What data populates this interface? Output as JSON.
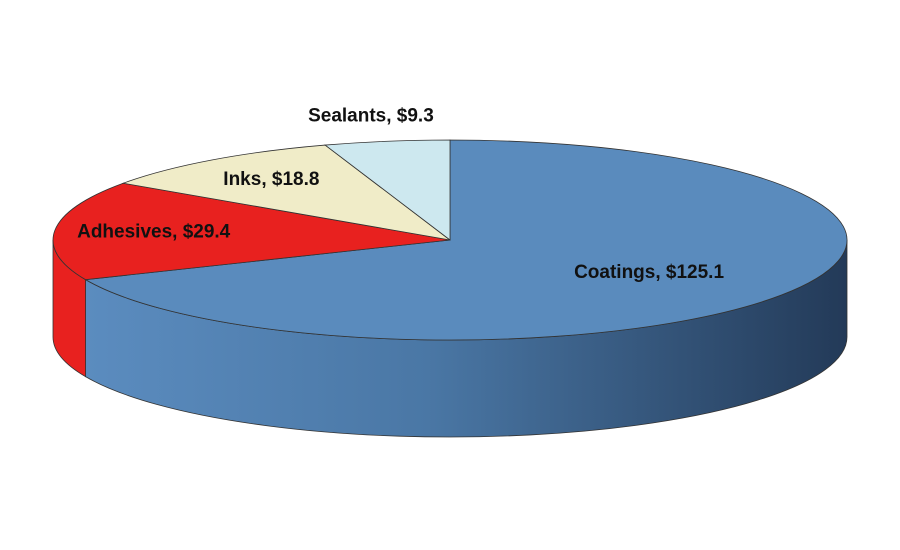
{
  "chart_data": {
    "type": "pie",
    "values": [
      125.1,
      29.4,
      18.8,
      9.3
    ],
    "value_labels": [
      "Coatings, $125.1",
      "Adhesives, $29.4",
      "Inks, $18.8",
      "Sealants, $9.3"
    ],
    "colors": [
      "#5a8bbd",
      "#e8211f",
      "#f0ecc8",
      "#cde8ef"
    ]
  }
}
